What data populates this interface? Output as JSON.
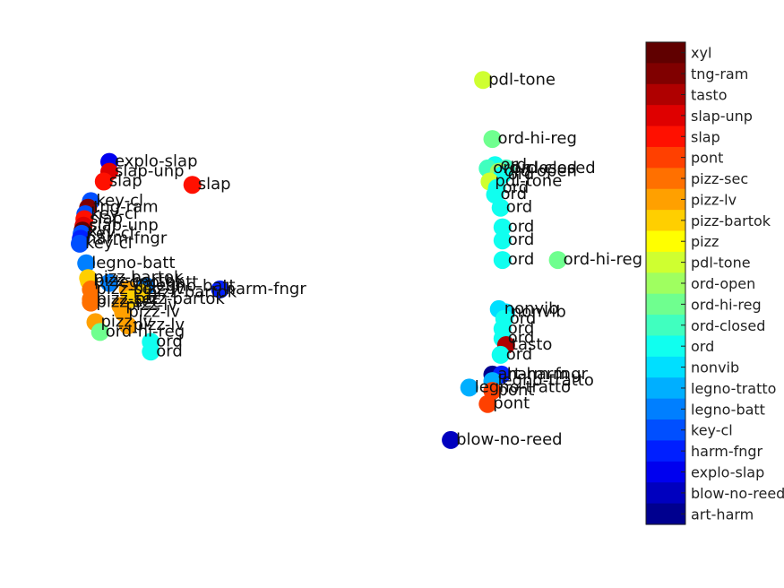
{
  "chart_data": {
    "type": "scatter",
    "title": "",
    "xlabel": "",
    "ylabel": "",
    "axes_visible": false,
    "grid": false,
    "legend": "colorbar-right",
    "categories": [
      "art-harm",
      "blow-no-reed",
      "explo-slap",
      "harm-fngr",
      "key-cl",
      "legno-batt",
      "legno-tratto",
      "nonvib",
      "ord",
      "ord-closed",
      "ord-hi-reg",
      "ord-open",
      "pdl-tone",
      "pizz",
      "pizz-bartok",
      "pizz-lv",
      "pizz-sec",
      "pont",
      "slap",
      "slap-unp",
      "tasto",
      "tng-ram",
      "xyl"
    ],
    "category_colors": [
      "#00008f",
      "#0000bf",
      "#0000ef",
      "#001fff",
      "#004fff",
      "#007fff",
      "#00afff",
      "#00dfff",
      "#10ffef",
      "#40ffbf",
      "#6fff8f",
      "#9fff60",
      "#cfff30",
      "#ffff00",
      "#ffcf00",
      "#ffa000",
      "#ff7000",
      "#ff4000",
      "#ff1000",
      "#df0000",
      "#af0000",
      "#800000",
      "#600000"
    ],
    "points": [
      {
        "x": 0.5,
        "y": 61,
        "label": "pdl-tone"
      },
      {
        "x": 1.5,
        "y": 43,
        "label": "ord-hi-reg"
      },
      {
        "x": 1.8,
        "y": 35,
        "label": "ord"
      },
      {
        "x": 1.0,
        "y": 34,
        "label": "ord-closed"
      },
      {
        "x": 3.0,
        "y": 34,
        "label": "ord-closed"
      },
      {
        "x": 2.2,
        "y": 33,
        "label": "ord-open"
      },
      {
        "x": 2.6,
        "y": 32,
        "label": "ord"
      },
      {
        "x": 1.2,
        "y": 30,
        "label": "pdl-tone"
      },
      {
        "x": 2.0,
        "y": 28,
        "label": "ord"
      },
      {
        "x": 1.8,
        "y": 26,
        "label": "ord"
      },
      {
        "x": 2.4,
        "y": 22,
        "label": "ord"
      },
      {
        "x": 2.6,
        "y": 16,
        "label": "ord"
      },
      {
        "x": 2.6,
        "y": 12,
        "label": "ord"
      },
      {
        "x": 2.6,
        "y": 6,
        "label": "ord"
      },
      {
        "x": 8.6,
        "y": 6,
        "label": "ord-hi-reg"
      },
      {
        "x": 2.2,
        "y": -9,
        "label": "nonvib"
      },
      {
        "x": 3.0,
        "y": -10,
        "label": "nonvib"
      },
      {
        "x": 2.8,
        "y": -12,
        "label": "ord"
      },
      {
        "x": 2.6,
        "y": -15,
        "label": "ord"
      },
      {
        "x": 2.6,
        "y": -18,
        "label": "ord"
      },
      {
        "x": 3.0,
        "y": -20,
        "label": "tasto"
      },
      {
        "x": 2.4,
        "y": -23,
        "label": "ord"
      },
      {
        "x": 1.5,
        "y": -29,
        "label": "art-harm"
      },
      {
        "x": 2.5,
        "y": -29,
        "label": "harm-fngr"
      },
      {
        "x": 1.5,
        "y": -31,
        "label": "legno-tratto"
      },
      {
        "x": -1.0,
        "y": -33,
        "label": "legno-tratto"
      },
      {
        "x": 1.5,
        "y": -34,
        "label": "pont"
      },
      {
        "x": 1.0,
        "y": -38,
        "label": "pont"
      },
      {
        "x": -3.0,
        "y": -49,
        "label": "blow-no-reed"
      },
      {
        "x": -40.0,
        "y": 36,
        "label": "explo-slap"
      },
      {
        "x": -40.0,
        "y": 33,
        "label": "slap-unp"
      },
      {
        "x": -40.6,
        "y": 30,
        "label": "slap"
      },
      {
        "x": -31.0,
        "y": 29,
        "label": "slap"
      },
      {
        "x": -42.0,
        "y": 24,
        "label": "key-cl"
      },
      {
        "x": -42.3,
        "y": 22,
        "label": "tng-ram"
      },
      {
        "x": -42.6,
        "y": 20,
        "label": "key-cl"
      },
      {
        "x": -42.7,
        "y": 18.5,
        "label": "slap"
      },
      {
        "x": -42.8,
        "y": 16.5,
        "label": "slap-unp"
      },
      {
        "x": -42.9,
        "y": 15,
        "label": "xyl"
      },
      {
        "x": -43.0,
        "y": 14,
        "label": "key-cl"
      },
      {
        "x": -43.1,
        "y": 12.5,
        "label": "harm-fngr"
      },
      {
        "x": -43.2,
        "y": 11,
        "label": "key-cl"
      },
      {
        "x": -42.5,
        "y": 5,
        "label": "legno-batt"
      },
      {
        "x": -42.3,
        "y": 0.5,
        "label": "pizz-bartok"
      },
      {
        "x": -42.2,
        "y": -0.5,
        "label": "pizz-bartok"
      },
      {
        "x": -40.0,
        "y": -1,
        "label": "legno-batt"
      },
      {
        "x": -36.0,
        "y": -2,
        "label": "legno-batt"
      },
      {
        "x": -42.0,
        "y": -3,
        "label": "pizz-sec"
      },
      {
        "x": -38.0,
        "y": -3,
        "label": "pizz-lv"
      },
      {
        "x": -36.5,
        "y": -4,
        "label": "pizz-bartok"
      },
      {
        "x": -28.0,
        "y": -3,
        "label": "harm-fngr"
      },
      {
        "x": -42.0,
        "y": -6,
        "label": "pizz-sec"
      },
      {
        "x": -37.8,
        "y": -6,
        "label": "pizz-bartok"
      },
      {
        "x": -42.0,
        "y": -7,
        "label": "pizz-sec"
      },
      {
        "x": -38.8,
        "y": -8,
        "label": "pizz-lv"
      },
      {
        "x": -38.5,
        "y": -10,
        "label": "pizz-lv"
      },
      {
        "x": -41.5,
        "y": -13,
        "label": "pizz-lv"
      },
      {
        "x": -38.0,
        "y": -14,
        "label": "pizz-lv"
      },
      {
        "x": -41.0,
        "y": -16,
        "label": "ord-hi-reg"
      },
      {
        "x": -35.5,
        "y": -19,
        "label": "ord"
      },
      {
        "x": -35.5,
        "y": -22,
        "label": "ord"
      }
    ]
  }
}
